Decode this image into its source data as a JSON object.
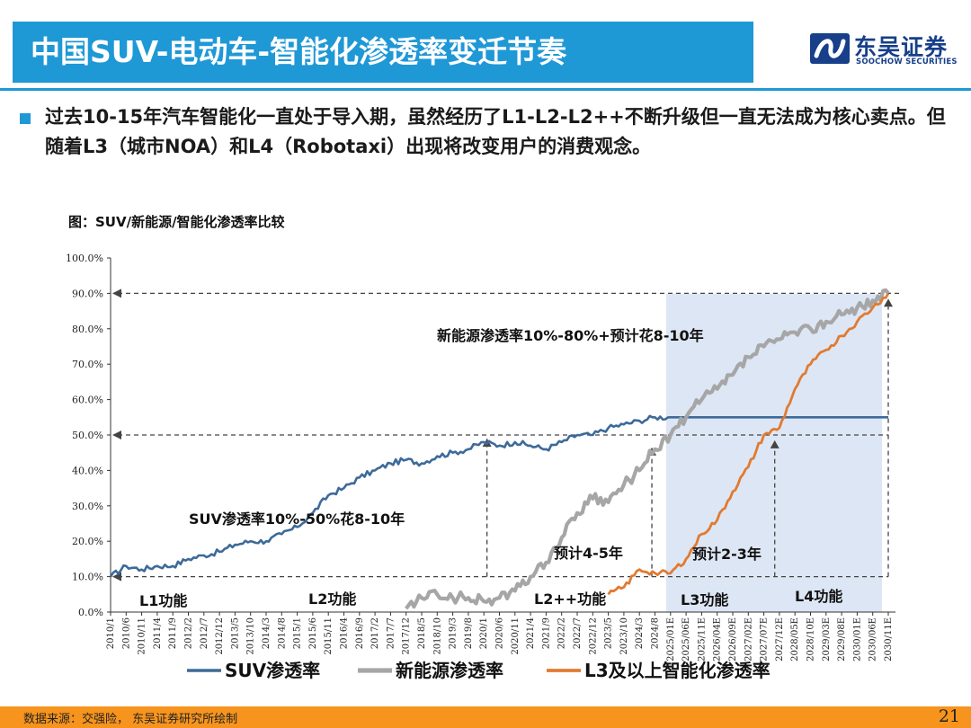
{
  "header": {
    "title": "中国SUV-电动车-智能化渗透率变迁节奏",
    "logo_cn": "东吴证券",
    "logo_en": "SOOCHOW SECURITIES",
    "brand_color": "#1f98d6"
  },
  "bullet": {
    "text": "过去10-15年汽车智能化一直处于导入期，虽然经历了L1-L2-L2++不断升级但一直无法成为核心卖点。但随着L3（城市NOA）和L4（Robotaxi）出现将改变用户的消费观念。"
  },
  "chart_caption": "图：SUV/新能源/智能化渗透率比较",
  "chart_data": {
    "type": "line",
    "title": "",
    "xlabel": "",
    "ylabel": "",
    "ylim": [
      0,
      100
    ],
    "y_ticks": [
      "0.0%",
      "10.0%",
      "20.0%",
      "30.0%",
      "40.0%",
      "50.0%",
      "60.0%",
      "70.0%",
      "80.0%",
      "90.0%",
      "100.0%"
    ],
    "x_ticks": [
      "2010/1",
      "2010/6",
      "2010/11",
      "2011/4",
      "2011/9",
      "2012/2",
      "2012/7",
      "2012/12",
      "2013/5",
      "2013/10",
      "2014/3",
      "2014/8",
      "2015/1",
      "2015/6",
      "2015/11",
      "2016/4",
      "2016/9",
      "2017/2",
      "2017/7",
      "2017/12",
      "2018/5",
      "2018/10",
      "2019/3",
      "2019/8",
      "2020/1",
      "2020/6",
      "2020/11",
      "2021/4",
      "2021/9",
      "2022/2",
      "2022/7",
      "2022/12",
      "2023/5",
      "2023/10",
      "2024/3",
      "2024/8",
      "2025/01E",
      "2025/06E",
      "2025/11E",
      "2026/04E",
      "2026/09E",
      "2027/02E",
      "2027/07E",
      "2027/12E",
      "2028/05E",
      "2028/10E",
      "2029/03E",
      "2029/08E",
      "2030/01E",
      "2030/06E",
      "2030/11E"
    ],
    "forecast_start_tick": "2025/01E",
    "forecast_shade_color": "#dde6f4",
    "series": [
      {
        "name": "SUV渗透率",
        "color": "#3d6a99",
        "points": [
          [
            0,
            10
          ],
          [
            1,
            13
          ],
          [
            2,
            12
          ],
          [
            3,
            13
          ],
          [
            4,
            13
          ],
          [
            5,
            15
          ],
          [
            6,
            16
          ],
          [
            7,
            17
          ],
          [
            8,
            19
          ],
          [
            9,
            20
          ],
          [
            10,
            20
          ],
          [
            11,
            22
          ],
          [
            12,
            24
          ],
          [
            13,
            28
          ],
          [
            14,
            33
          ],
          [
            15,
            35
          ],
          [
            16,
            38
          ],
          [
            17,
            40
          ],
          [
            18,
            42
          ],
          [
            19,
            43
          ],
          [
            20,
            42
          ],
          [
            21,
            44
          ],
          [
            22,
            45
          ],
          [
            23,
            46
          ],
          [
            24,
            48
          ],
          [
            25,
            47
          ],
          [
            26,
            48
          ],
          [
            27,
            47
          ],
          [
            28,
            46
          ],
          [
            29,
            48
          ],
          [
            30,
            50
          ],
          [
            31,
            50
          ],
          [
            32,
            52
          ],
          [
            33,
            53
          ],
          [
            34,
            54
          ],
          [
            35,
            55
          ],
          [
            36,
            55
          ],
          [
            37,
            55
          ],
          [
            38,
            55
          ],
          [
            39,
            55
          ],
          [
            40,
            55
          ],
          [
            41,
            55
          ],
          [
            42,
            55
          ],
          [
            43,
            55
          ],
          [
            44,
            55
          ],
          [
            45,
            55
          ],
          [
            46,
            55
          ],
          [
            47,
            55
          ],
          [
            48,
            55
          ],
          [
            49,
            55
          ],
          [
            50,
            55
          ]
        ]
      },
      {
        "name": "新能源渗透率",
        "color": "#a6a6a6",
        "points": [
          [
            19,
            1
          ],
          [
            20,
            4
          ],
          [
            21,
            5
          ],
          [
            22,
            4
          ],
          [
            23,
            4
          ],
          [
            24,
            3
          ],
          [
            25,
            4
          ],
          [
            26,
            6
          ],
          [
            27,
            10
          ],
          [
            28,
            14
          ],
          [
            29,
            21
          ],
          [
            30,
            28
          ],
          [
            31,
            32
          ],
          [
            32,
            31
          ],
          [
            33,
            36
          ],
          [
            34,
            40
          ],
          [
            35,
            46
          ],
          [
            36,
            50
          ],
          [
            37,
            55
          ],
          [
            38,
            60
          ],
          [
            39,
            63
          ],
          [
            40,
            67
          ],
          [
            41,
            72
          ],
          [
            42,
            75
          ],
          [
            43,
            77
          ],
          [
            44,
            79
          ],
          [
            45,
            80
          ],
          [
            46,
            82
          ],
          [
            47,
            84
          ],
          [
            48,
            86
          ],
          [
            49,
            88
          ],
          [
            50,
            90
          ]
        ]
      },
      {
        "name": "L3及以上智能化渗透率",
        "color": "#e07b32",
        "points": [
          [
            32,
            5
          ],
          [
            33,
            7
          ],
          [
            34,
            12
          ],
          [
            35,
            11
          ],
          [
            36,
            11
          ],
          [
            37,
            15
          ],
          [
            38,
            22
          ],
          [
            39,
            26
          ],
          [
            40,
            34
          ],
          [
            41,
            41
          ],
          [
            42,
            50
          ],
          [
            43,
            52
          ],
          [
            44,
            63
          ],
          [
            45,
            70
          ],
          [
            46,
            74
          ],
          [
            47,
            78
          ],
          [
            48,
            82
          ],
          [
            49,
            86
          ],
          [
            50,
            90
          ]
        ]
      }
    ],
    "annotations": [
      {
        "text": "新能源渗透率10%-80%+预计花8-10年"
      },
      {
        "text": "SUV渗透率10%-50%花8-10年"
      },
      {
        "text": "预计4-5年"
      },
      {
        "text": "预计2-3年"
      }
    ],
    "phase_labels": [
      "L1功能",
      "L2功能",
      "L2++功能",
      "L3功能",
      "L4功能"
    ],
    "legend": {
      "placement": "bottom"
    }
  },
  "footer": {
    "source": "数据来源：交强险， 东吴证券研究所绘制",
    "page": "21",
    "color": "#f7941d"
  }
}
